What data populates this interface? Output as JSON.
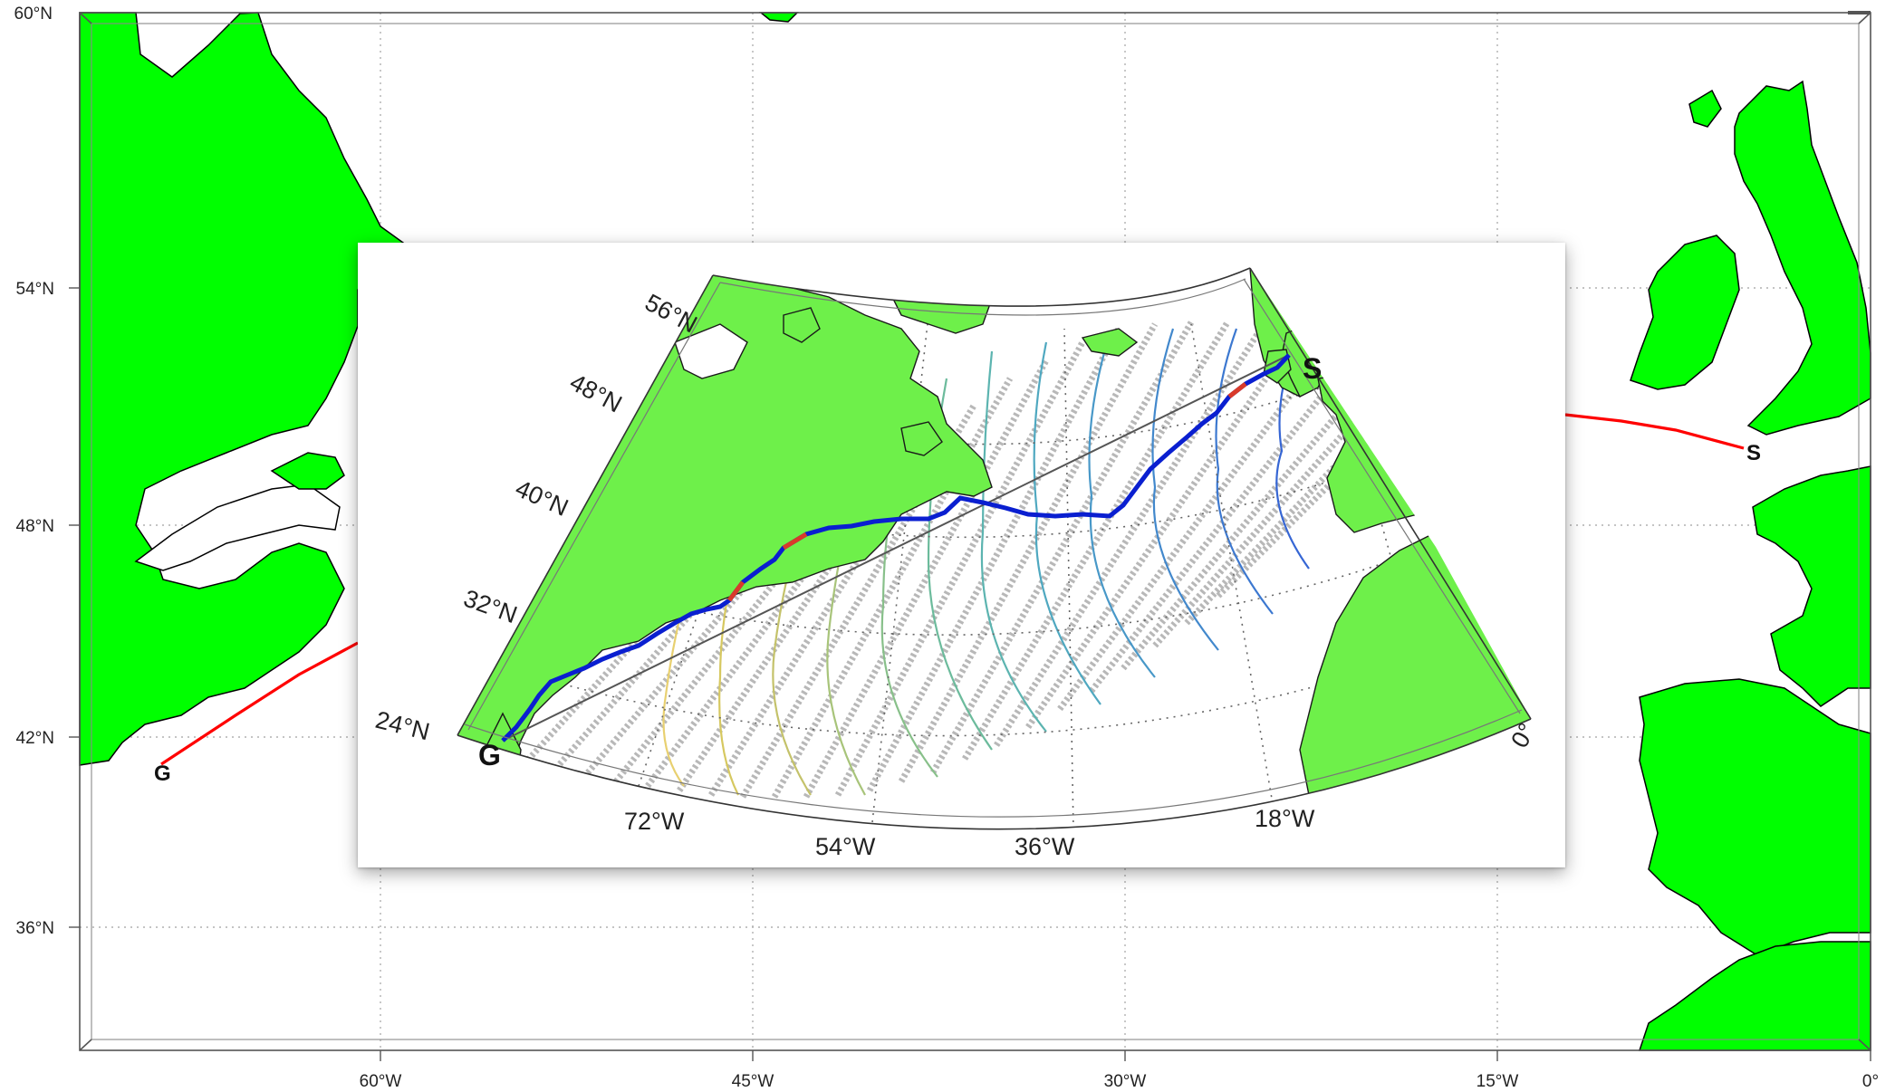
{
  "base_map": {
    "lat_labels": [
      "60°N",
      "54°N",
      "48°N",
      "42°N",
      "36°N"
    ],
    "lon_labels": [
      "60°W",
      "45°W",
      "30°W",
      "15°W",
      "0°"
    ],
    "points": {
      "start_label": "G",
      "end_label": "S"
    },
    "colors": {
      "land": "#00ff00",
      "route": "#ff0000",
      "grid": "#aaaaaa"
    }
  },
  "inset_map": {
    "lat_labels": [
      "56°N",
      "48°N",
      "40°N",
      "32°N",
      "24°N"
    ],
    "lon_labels": [
      "72°W",
      "54°W",
      "36°W",
      "18°W",
      "0°"
    ],
    "points": {
      "start_label": "G",
      "end_label": "S"
    },
    "colors": {
      "land": "#6ef04a",
      "optimal_route": "#0a1fd0",
      "route_highlight": "#d93a2a",
      "great_circle": "#555555",
      "grid_tracks": "#b5b5b5"
    }
  }
}
